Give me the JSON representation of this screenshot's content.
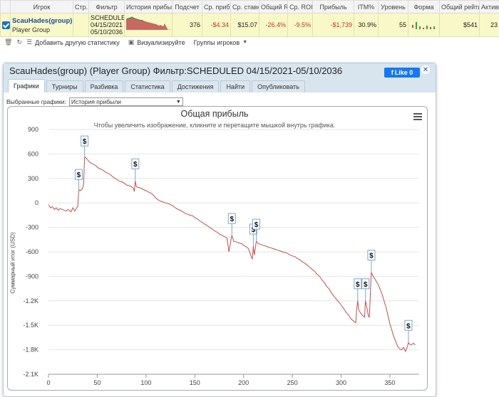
{
  "table": {
    "headers": [
      "",
      "Игрок",
      "Стр.",
      "Фильтр",
      "История прибыли",
      "Подсчет",
      "Ср. прибыль",
      "Ср. ставка",
      "Общий ROI",
      "Ср. ROI",
      "Прибыль",
      "ITM%",
      "Уровень",
      "Форма",
      "Общий рейтинг",
      "Активность"
    ],
    "row": {
      "player_name": "ScauHades(group)",
      "player_group": "Player Group",
      "stake": "",
      "filter_line1": "SCHEDULED",
      "filter_line2": "04/15/2021 -",
      "filter_line3": "05/10/2036",
      "count": "376",
      "avg_profit": "-$4.34",
      "avg_stake": "$15.07",
      "total_roi": "-26.4%",
      "avg_roi": "-9.5%",
      "profit": "-$1,739",
      "itm": "30.9%",
      "level": "55",
      "total_rating": "$541",
      "activity": "23"
    }
  },
  "toolbar": {
    "add_stats": "Добавить другую статистику",
    "visualize": "Визуализируйте",
    "player_groups": "Группы игроков"
  },
  "dialog": {
    "title": "ScauHades(group) (Player Group) Фильтр:SCHEDULED 04/15/2021-05/10/2036",
    "like_label": "Like 0",
    "tabs": [
      "Графики",
      "Турниры",
      "Разбивка",
      "Статистика",
      "Достижения",
      "Найти",
      "Опубликовать"
    ],
    "active_tab": 0,
    "graph_select_label": "Выбранные графики:",
    "graph_select_value": "История прибыли"
  },
  "chart_data": {
    "type": "line",
    "title": "Общая прибыль",
    "subtitle": "Чтобы увеличить изображение, кликните и перетащите мышкой внутрь графика.",
    "ylabel": "Суммарный итог (USD)",
    "xlim": [
      0,
      380
    ],
    "ylim": [
      -2100,
      900
    ],
    "xticks": [
      0,
      50,
      100,
      150,
      200,
      250,
      300,
      350
    ],
    "yticks": [
      900,
      600,
      300,
      0,
      -300,
      -600,
      -900,
      -1200,
      -1500,
      -1800,
      -2100
    ],
    "ytick_labels": [
      "900",
      "600",
      "300",
      "0",
      "-300",
      "-600",
      "-900",
      "-1.2K",
      "-1.5K",
      "-1.8K",
      "-2.1K"
    ],
    "line_color": "#c0504d",
    "series": [
      {
        "points": [
          [
            0,
            -20
          ],
          [
            2,
            -60
          ],
          [
            4,
            -45
          ],
          [
            6,
            -80
          ],
          [
            8,
            -60
          ],
          [
            10,
            -90
          ],
          [
            12,
            -70
          ],
          [
            15,
            -85
          ],
          [
            18,
            -100
          ],
          [
            20,
            -80
          ],
          [
            23,
            -110
          ],
          [
            25,
            -60
          ],
          [
            27,
            -100
          ],
          [
            28,
            -80
          ],
          [
            30,
            -40
          ],
          [
            31,
            140
          ],
          [
            32,
            160
          ],
          [
            33,
            150
          ],
          [
            35,
            180
          ],
          [
            36,
            230
          ],
          [
            37,
            550
          ],
          [
            38,
            560
          ],
          [
            40,
            530
          ],
          [
            42,
            500
          ],
          [
            45,
            480
          ],
          [
            48,
            460
          ],
          [
            50,
            440
          ],
          [
            52,
            420
          ],
          [
            55,
            410
          ],
          [
            58,
            380
          ],
          [
            60,
            370
          ],
          [
            63,
            350
          ],
          [
            65,
            330
          ],
          [
            68,
            300
          ],
          [
            70,
            290
          ],
          [
            72,
            270
          ],
          [
            75,
            260
          ],
          [
            78,
            240
          ],
          [
            80,
            220
          ],
          [
            83,
            210
          ],
          [
            85,
            200
          ],
          [
            87,
            180
          ],
          [
            88,
            140
          ],
          [
            89,
            270
          ],
          [
            90,
            200
          ],
          [
            92,
            190
          ],
          [
            95,
            180
          ],
          [
            98,
            160
          ],
          [
            100,
            150
          ],
          [
            103,
            130
          ],
          [
            105,
            120
          ],
          [
            108,
            90
          ],
          [
            110,
            60
          ],
          [
            112,
            40
          ],
          [
            115,
            20
          ],
          [
            118,
            10
          ],
          [
            120,
            0
          ],
          [
            123,
            -10
          ],
          [
            125,
            -20
          ],
          [
            128,
            -40
          ],
          [
            130,
            -60
          ],
          [
            133,
            -80
          ],
          [
            135,
            -90
          ],
          [
            138,
            -110
          ],
          [
            140,
            -130
          ],
          [
            143,
            -140
          ],
          [
            145,
            -150
          ],
          [
            148,
            -160
          ],
          [
            150,
            -180
          ],
          [
            153,
            -200
          ],
          [
            155,
            -220
          ],
          [
            158,
            -240
          ],
          [
            160,
            -260
          ],
          [
            163,
            -280
          ],
          [
            165,
            -300
          ],
          [
            168,
            -320
          ],
          [
            170,
            -340
          ],
          [
            173,
            -360
          ],
          [
            175,
            -380
          ],
          [
            178,
            -400
          ],
          [
            180,
            -410
          ],
          [
            183,
            -430
          ],
          [
            185,
            -600
          ],
          [
            187,
            -460
          ],
          [
            188,
            -400
          ],
          [
            190,
            -470
          ],
          [
            193,
            -480
          ],
          [
            195,
            -490
          ],
          [
            198,
            -500
          ],
          [
            200,
            -520
          ],
          [
            203,
            -540
          ],
          [
            205,
            -560
          ],
          [
            208,
            -660
          ],
          [
            209,
            -690
          ],
          [
            210,
            -530
          ],
          [
            211,
            -640
          ],
          [
            212,
            -560
          ],
          [
            213,
            -470
          ],
          [
            215,
            -500
          ],
          [
            218,
            -510
          ],
          [
            220,
            -520
          ],
          [
            223,
            -530
          ],
          [
            225,
            -540
          ],
          [
            228,
            -550
          ],
          [
            230,
            -560
          ],
          [
            233,
            -570
          ],
          [
            235,
            -580
          ],
          [
            238,
            -590
          ],
          [
            240,
            -600
          ],
          [
            243,
            -610
          ],
          [
            245,
            -620
          ],
          [
            248,
            -640
          ],
          [
            250,
            -650
          ],
          [
            253,
            -660
          ],
          [
            255,
            -680
          ],
          [
            258,
            -700
          ],
          [
            260,
            -720
          ],
          [
            263,
            -740
          ],
          [
            265,
            -760
          ],
          [
            268,
            -790
          ],
          [
            270,
            -810
          ],
          [
            273,
            -840
          ],
          [
            275,
            -870
          ],
          [
            278,
            -900
          ],
          [
            280,
            -940
          ],
          [
            283,
            -980
          ],
          [
            285,
            -1020
          ],
          [
            288,
            -1060
          ],
          [
            290,
            -1100
          ],
          [
            293,
            -1150
          ],
          [
            295,
            -1180
          ],
          [
            298,
            -1220
          ],
          [
            300,
            -1250
          ],
          [
            303,
            -1300
          ],
          [
            305,
            -1340
          ],
          [
            308,
            -1380
          ],
          [
            310,
            -1420
          ],
          [
            313,
            -1450
          ],
          [
            315,
            -1470
          ],
          [
            316,
            -1300
          ],
          [
            317,
            -1200
          ],
          [
            318,
            -1310
          ],
          [
            320,
            -1350
          ],
          [
            322,
            -1380
          ],
          [
            324,
            -1400
          ],
          [
            325,
            -1200
          ],
          [
            326,
            -1260
          ],
          [
            327,
            -1320
          ],
          [
            328,
            -1390
          ],
          [
            329,
            -1400
          ],
          [
            330,
            -1100
          ],
          [
            331,
            -850
          ],
          [
            332,
            -880
          ],
          [
            334,
            -920
          ],
          [
            336,
            -960
          ],
          [
            338,
            -1000
          ],
          [
            340,
            -1060
          ],
          [
            342,
            -1120
          ],
          [
            344,
            -1200
          ],
          [
            346,
            -1280
          ],
          [
            348,
            -1380
          ],
          [
            350,
            -1480
          ],
          [
            352,
            -1560
          ],
          [
            354,
            -1640
          ],
          [
            356,
            -1700
          ],
          [
            358,
            -1760
          ],
          [
            360,
            -1790
          ],
          [
            362,
            -1800
          ],
          [
            364,
            -1770
          ],
          [
            366,
            -1820
          ],
          [
            367,
            -1790
          ],
          [
            368,
            -1760
          ],
          [
            369,
            -1710
          ],
          [
            370,
            -1730
          ],
          [
            372,
            -1740
          ],
          [
            374,
            -1720
          ],
          [
            376,
            -1740
          ]
        ]
      }
    ],
    "markers": [
      {
        "x": 31,
        "y": 140,
        "label": "$"
      },
      {
        "x": 37,
        "y": 550,
        "label": "$"
      },
      {
        "x": 89,
        "y": 270,
        "label": "$"
      },
      {
        "x": 188,
        "y": -400,
        "label": "$"
      },
      {
        "x": 210,
        "y": -530,
        "label": "$"
      },
      {
        "x": 213,
        "y": -470,
        "label": "$"
      },
      {
        "x": 317,
        "y": -1200,
        "label": "$"
      },
      {
        "x": 325,
        "y": -1200,
        "label": "$"
      },
      {
        "x": 331,
        "y": -850,
        "label": "$"
      },
      {
        "x": 369,
        "y": -1710,
        "label": "$"
      }
    ]
  }
}
